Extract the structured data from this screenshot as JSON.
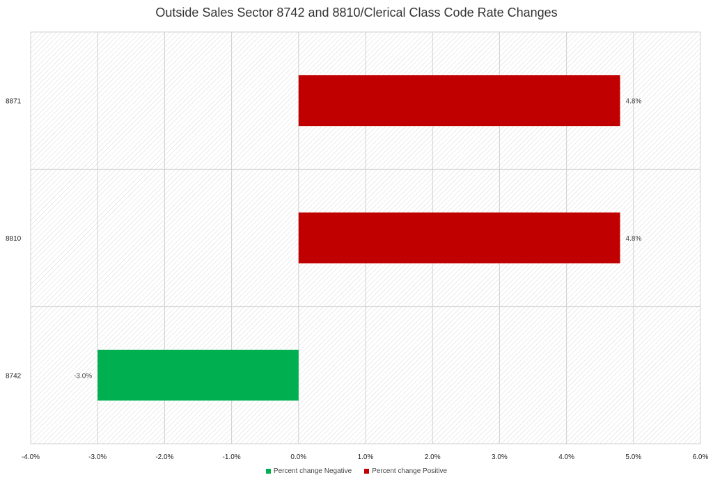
{
  "chart_data": {
    "type": "bar",
    "orientation": "horizontal",
    "title": "Outside Sales Sector 8742 and 8810/Clerical Class Code Rate Changes",
    "categories": [
      "8871",
      "8810",
      "8742"
    ],
    "values": [
      4.8,
      4.8,
      -3.0
    ],
    "value_labels": [
      "4.8%",
      "4.8%",
      "-3.0%"
    ],
    "x_unit": "%",
    "xlim": [
      -4.0,
      6.0
    ],
    "x_ticks": [
      -4.0,
      -3.0,
      -2.0,
      -1.0,
      0.0,
      1.0,
      2.0,
      3.0,
      4.0,
      5.0,
      6.0
    ],
    "x_tick_labels": [
      "-4.0%",
      "-3.0%",
      "-2.0%",
      "-1.0%",
      "0.0%",
      "1.0%",
      "2.0%",
      "3.0%",
      "4.0%",
      "5.0%",
      "6.0%"
    ],
    "grid": true,
    "background_pattern": "diagonal-hatch",
    "legend_position": "bottom",
    "series": [
      {
        "name": "Percent change Negative",
        "color": "#00b050"
      },
      {
        "name": "Percent change Positive",
        "color": "#c00000"
      }
    ]
  }
}
